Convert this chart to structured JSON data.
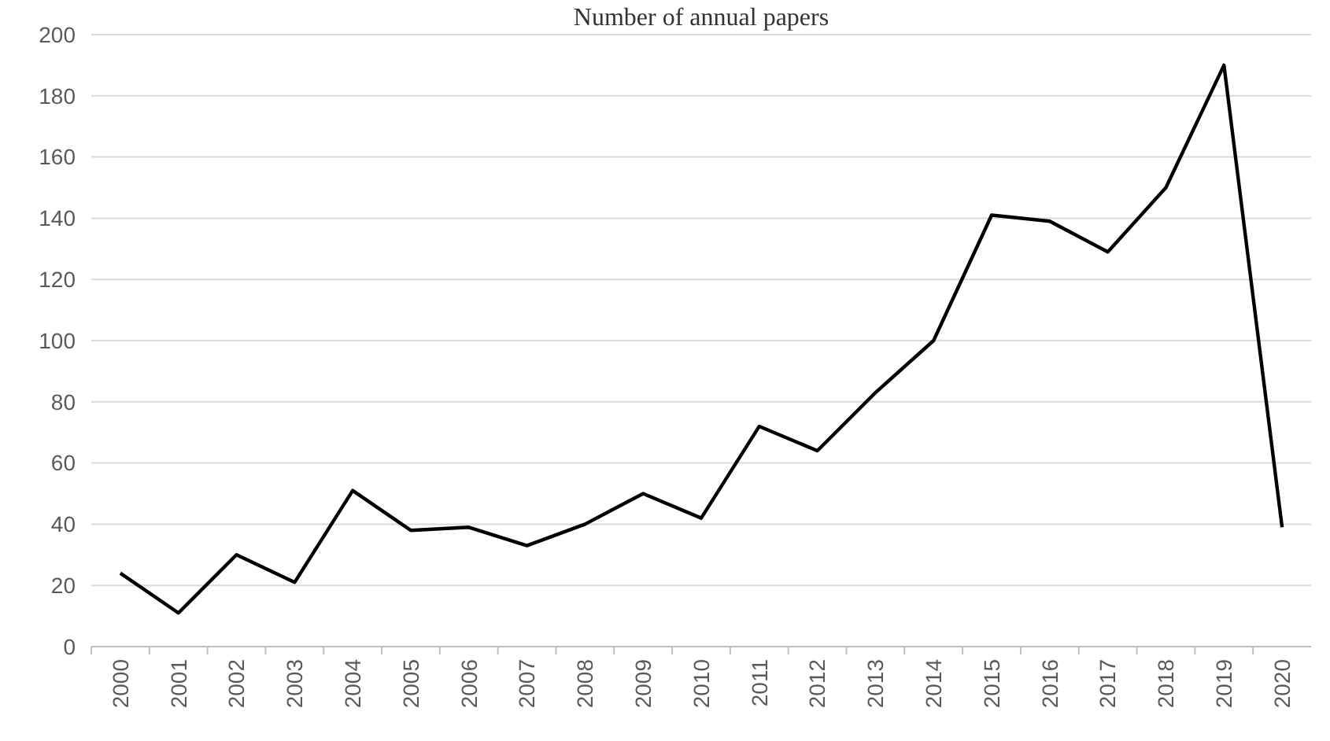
{
  "chart_data": {
    "type": "line",
    "title": "Number of annual papers",
    "categories": [
      "2000",
      "2001",
      "2002",
      "2003",
      "2004",
      "2005",
      "2006",
      "2007",
      "2008",
      "2009",
      "2010",
      "2011",
      "2012",
      "2013",
      "2014",
      "2015",
      "2016",
      "2017",
      "2018",
      "2019",
      "2020"
    ],
    "series": [
      {
        "color": "#000000",
        "values": [
          24,
          11,
          30,
          21,
          51,
          38,
          39,
          33,
          40,
          50,
          42,
          72,
          64,
          83,
          100,
          141,
          139,
          129,
          150,
          190,
          39
        ]
      }
    ],
    "ylim": [
      0,
      200
    ],
    "yticks": [
      0,
      20,
      40,
      60,
      80,
      100,
      120,
      140,
      160,
      180,
      200
    ],
    "grid": "y",
    "marker": "none",
    "line_style": "solid"
  }
}
